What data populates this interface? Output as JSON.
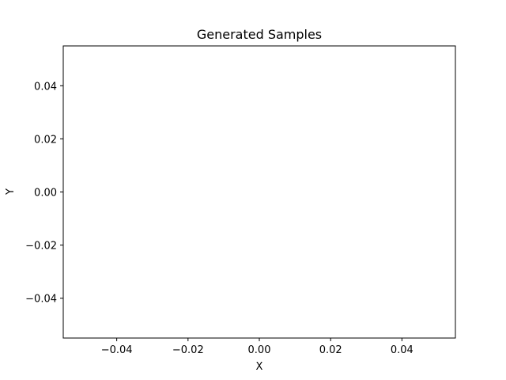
{
  "chart_data": {
    "type": "scatter",
    "title": "Generated Samples",
    "xlabel": "X",
    "ylabel": "Y",
    "series": [
      {
        "x": [],
        "y": []
      }
    ],
    "xlim": [
      -0.055,
      0.055
    ],
    "ylim": [
      -0.055,
      0.055
    ],
    "xticks": [
      -0.04,
      -0.02,
      0.0,
      0.02,
      0.04
    ],
    "xtick_labels": [
      "−0.04",
      "−0.02",
      "0.00",
      "0.02",
      "0.04"
    ],
    "yticks": [
      -0.04,
      -0.02,
      0.0,
      0.02,
      0.04
    ],
    "ytick_labels": [
      "−0.04",
      "−0.02",
      "0.00",
      "0.02",
      "0.04"
    ],
    "grid": false,
    "legend": "none"
  }
}
